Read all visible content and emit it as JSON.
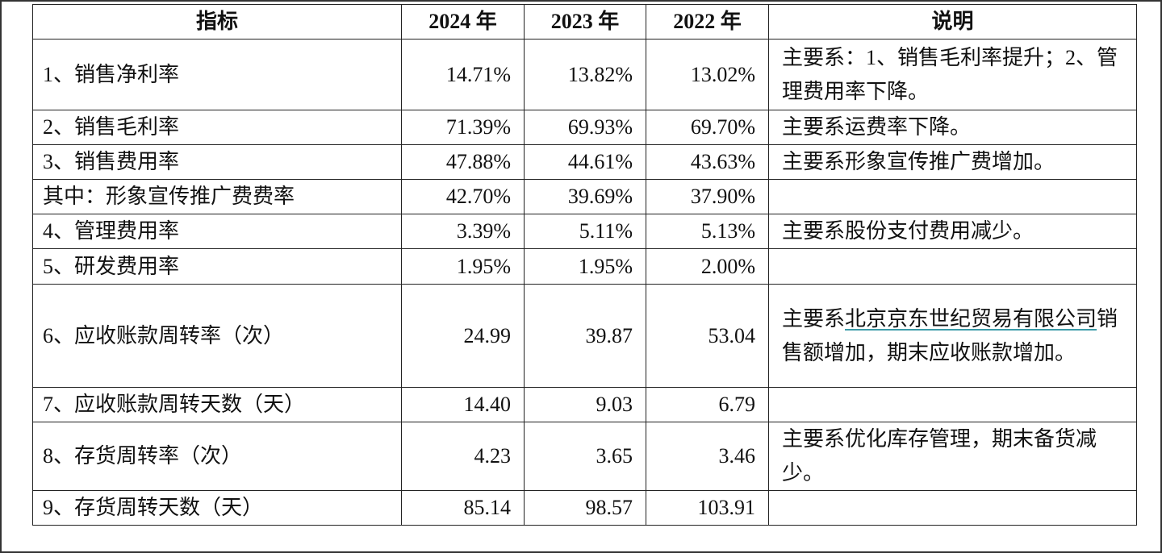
{
  "table": {
    "header": [
      "指标",
      "2024 年",
      "2023 年",
      "2022 年",
      "说明"
    ],
    "rows": [
      [
        "1、销售净利率",
        "14.71%",
        "13.82%",
        "13.02%",
        "主要系：1、销售毛利率提升；2、管理费用率下降。"
      ],
      [
        "2、销售毛利率",
        "71.39%",
        "69.93%",
        "69.70%",
        "主要系运费率下降。"
      ],
      [
        "3、销售费用率",
        "47.88%",
        "44.61%",
        "43.63%",
        "主要系形象宣传推广费增加。"
      ],
      [
        "其中：形象宣传推广费费率",
        "42.70%",
        "39.69%",
        "37.90%"
      ],
      [
        "4、管理费用率",
        "3.39%",
        "5.11%",
        "5.13%",
        "主要系股份支付费用减少。"
      ],
      [
        "5、研发费用率",
        "1.95%",
        "1.95%",
        "2.00%"
      ],
      [
        "6、应收账款周转率（次）",
        "24.99",
        "39.87",
        "53.04",
        {
          "before": "主要系",
          "link": "北京京东世纪贸易有限公司",
          "after": "销售额增加，期末应收账款增加。"
        }
      ],
      [
        "7、应收账款周转天数（天）",
        "14.40",
        "9.03",
        "6.79"
      ],
      [
        "8、存货周转率（次）",
        "4.23",
        "3.65",
        "3.46",
        "主要系优化库存管理，期末备货减少。"
      ],
      [
        "9、存货周转天数（天）",
        "85.14",
        "98.57",
        "103.91"
      ]
    ]
  }
}
